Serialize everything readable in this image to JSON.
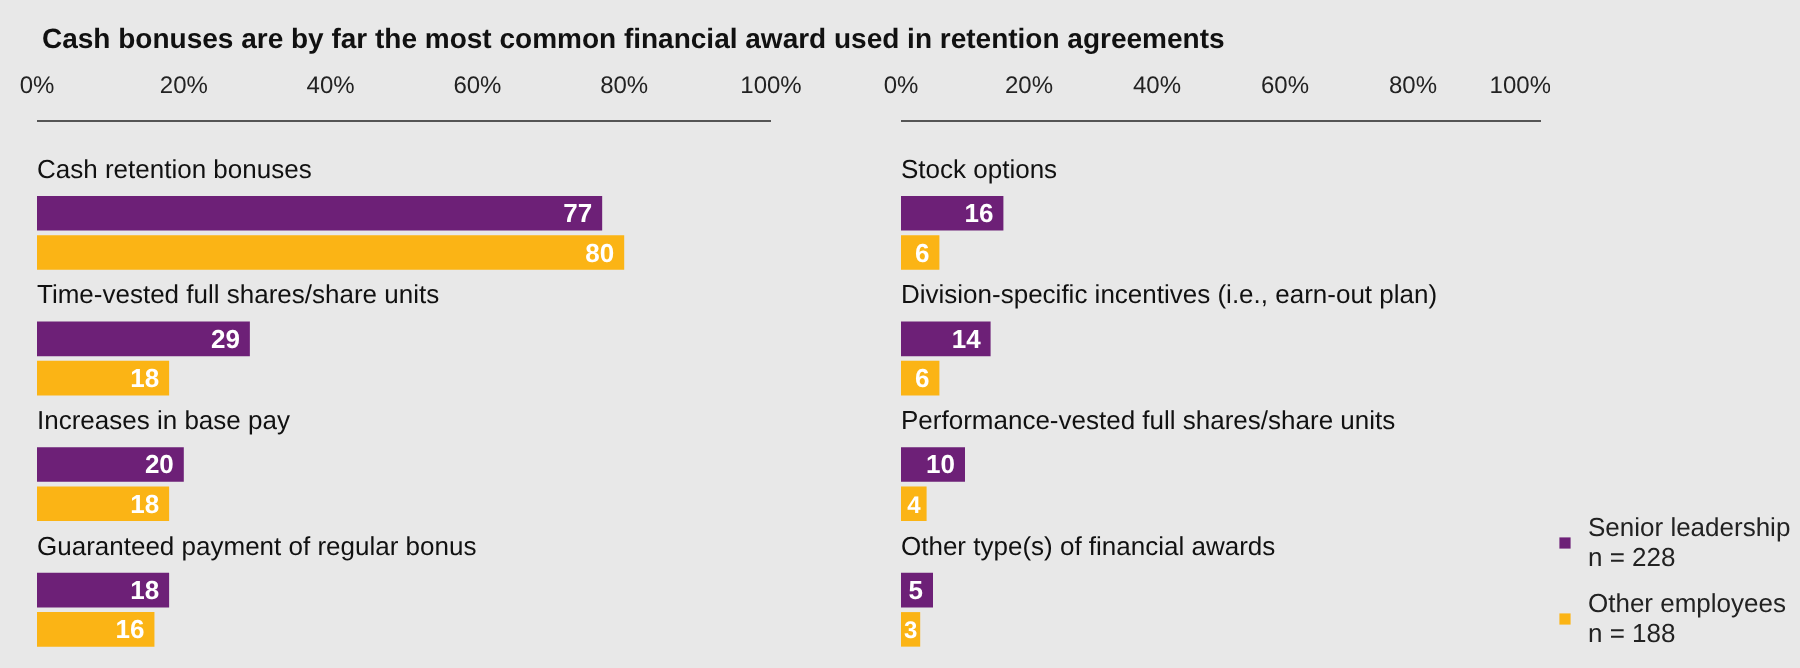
{
  "chart_data": [
    {
      "type": "bar",
      "orientation": "horizontal",
      "title": "Cash bonuses are by far the most common financial award used in retention agreements",
      "categories": [
        "Cash retention bonuses",
        "Time-vested full shares/share units",
        "Increases in base pay",
        "Guaranteed payment of regular bonus"
      ],
      "series": [
        {
          "color": "#6d2077",
          "values": [
            77,
            29,
            20,
            18
          ]
        },
        {
          "color": "#fbb415",
          "values": [
            80,
            18,
            18,
            16
          ]
        }
      ],
      "xlim": [
        0,
        100
      ],
      "xticks": [
        {
          "value": 0,
          "label": "0%"
        },
        {
          "value": 20,
          "label": "20%"
        },
        {
          "value": 40,
          "label": "40%"
        },
        {
          "value": 60,
          "label": "60%"
        },
        {
          "value": 80,
          "label": "80%"
        },
        {
          "value": 100,
          "label": "100%"
        }
      ],
      "data_labels": true
    },
    {
      "type": "bar",
      "orientation": "horizontal",
      "categories": [
        "Stock options",
        "Division-specific incentives (i.e., earn-out plan)",
        "Performance-vested full shares/share units",
        "Other type(s) of financial awards"
      ],
      "series": [
        {
          "name": "Senior leadership\nn = 228",
          "color": "#6d2077",
          "values": [
            16,
            14,
            10,
            5
          ]
        },
        {
          "name": "Other employees\nn = 188",
          "color": "#fbb415",
          "values": [
            6,
            6,
            4,
            3
          ]
        }
      ],
      "xlim": [
        0,
        100
      ],
      "xticks": [
        {
          "value": 0,
          "label": "0%"
        },
        {
          "value": 20,
          "label": "20%"
        },
        {
          "value": 40,
          "label": "40%"
        },
        {
          "value": 60,
          "label": "60%"
        },
        {
          "value": 80,
          "label": "80%"
        },
        {
          "value": 100,
          "label": "100%"
        }
      ],
      "data_labels": true,
      "legend": "bottom right"
    }
  ]
}
